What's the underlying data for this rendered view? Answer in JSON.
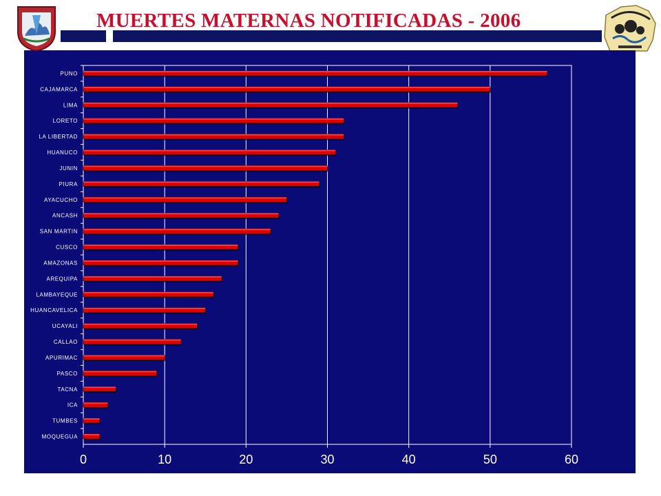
{
  "slide": {
    "title": "MUERTES MATERNAS NOTIFICADAS - 2006",
    "colors": {
      "title": "#c8102e",
      "panel": "#0b0b78",
      "bar": "#e00000",
      "rule": "#0d1563"
    },
    "logos": {
      "left": "gobierno-regional-logo",
      "right": "direccion-regional-de-salud-ayacucho-logo"
    }
  },
  "chart_data": {
    "type": "bar",
    "orientation": "horizontal",
    "categories": [
      "PUNO",
      "CAJAMARCA",
      "LIMA",
      "LORETO",
      "LA LIBERTAD",
      "HUANUCO",
      "JUNIN",
      "PIURA",
      "AYACUCHO",
      "ANCASH",
      "SAN MARTIN",
      "CUSCO",
      "AMAZONAS",
      "AREQUIPA",
      "LAMBAYEQUE",
      "HUANCAVELICA",
      "UCAYALI",
      "CALLAO",
      "APURIMAC",
      "PASCO",
      "TACNA",
      "ICA",
      "TUMBES",
      "MOQUEGUA"
    ],
    "values": [
      57,
      50,
      46,
      32,
      32,
      31,
      30,
      29,
      25,
      24,
      23,
      19,
      19,
      17,
      16,
      15,
      14,
      12,
      10,
      9,
      4,
      3,
      2,
      2
    ],
    "title": "",
    "xlabel": "",
    "ylabel": "",
    "xlim": [
      0,
      60
    ],
    "xticks": [
      0,
      10,
      20,
      30,
      40,
      50,
      60
    ],
    "grid": true,
    "legend": "none"
  }
}
